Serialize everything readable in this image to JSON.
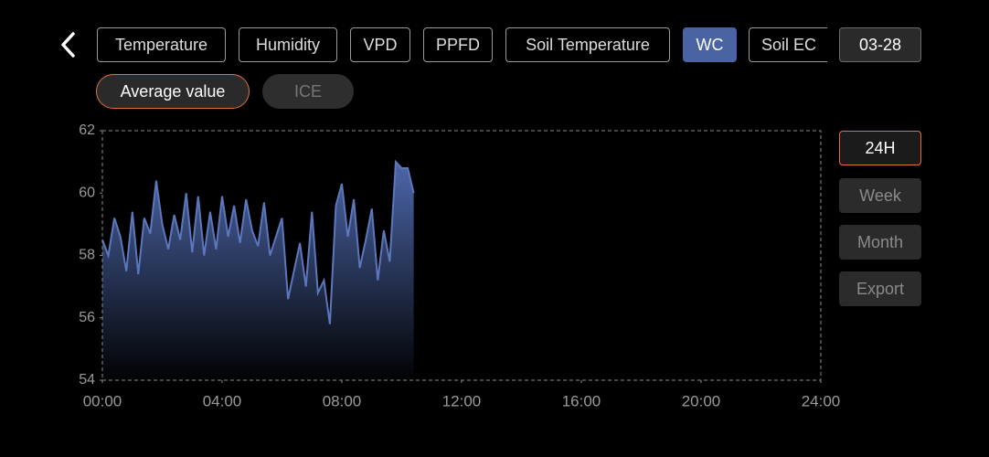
{
  "tabs": [
    "Temperature",
    "Humidity",
    "VPD",
    "PPFD",
    "Soil Temperature",
    "WC",
    "Soil EC"
  ],
  "date": "03-28",
  "modes": [
    "Average value",
    "ICE"
  ],
  "ranges": [
    "24H",
    "Week",
    "Month",
    "Export"
  ],
  "chart_data": {
    "type": "area",
    "color": "#5b78bd",
    "x": [
      0,
      0.2,
      0.4,
      0.6,
      0.8,
      1,
      1.2,
      1.4,
      1.6,
      1.8,
      2,
      2.2,
      2.4,
      2.6,
      2.8,
      3,
      3.2,
      3.4,
      3.6,
      3.8,
      4,
      4.2,
      4.4,
      4.6,
      4.8,
      5,
      5.2,
      5.4,
      5.6,
      5.8,
      6,
      6.2,
      6.4,
      6.6,
      6.8,
      7,
      7.2,
      7.4,
      7.6,
      7.8,
      8,
      8.2,
      8.4,
      8.6,
      8.8,
      9,
      9.2,
      9.4,
      9.6,
      9.8,
      10,
      10.2,
      10.4
    ],
    "values": [
      58.5,
      58.0,
      59.2,
      58.6,
      57.5,
      59.4,
      57.4,
      59.2,
      58.7,
      60.4,
      59.0,
      58.2,
      59.3,
      58.5,
      60.0,
      58.1,
      59.9,
      58.0,
      59.4,
      58.2,
      59.9,
      58.6,
      59.6,
      58.4,
      59.8,
      58.8,
      58.3,
      59.7,
      58.0,
      58.6,
      59.2,
      56.6,
      57.5,
      58.4,
      57.0,
      59.4,
      56.8,
      57.2,
      55.8,
      59.6,
      60.3,
      58.6,
      59.8,
      57.6,
      58.5,
      59.5,
      57.2,
      58.8,
      57.8,
      61.0,
      60.8,
      60.8,
      60.0
    ],
    "xlim": [
      0,
      24
    ],
    "xticks": [
      {
        "value": 0,
        "label": "00:00"
      },
      {
        "value": 4,
        "label": "04:00"
      },
      {
        "value": 8,
        "label": "08:00"
      },
      {
        "value": 12,
        "label": "12:00"
      },
      {
        "value": 16,
        "label": "16:00"
      },
      {
        "value": 20,
        "label": "20:00"
      },
      {
        "value": 24,
        "label": "24:00"
      }
    ],
    "ylim": [
      54,
      62
    ],
    "yticks": [
      54,
      56,
      58,
      60,
      62
    ]
  }
}
